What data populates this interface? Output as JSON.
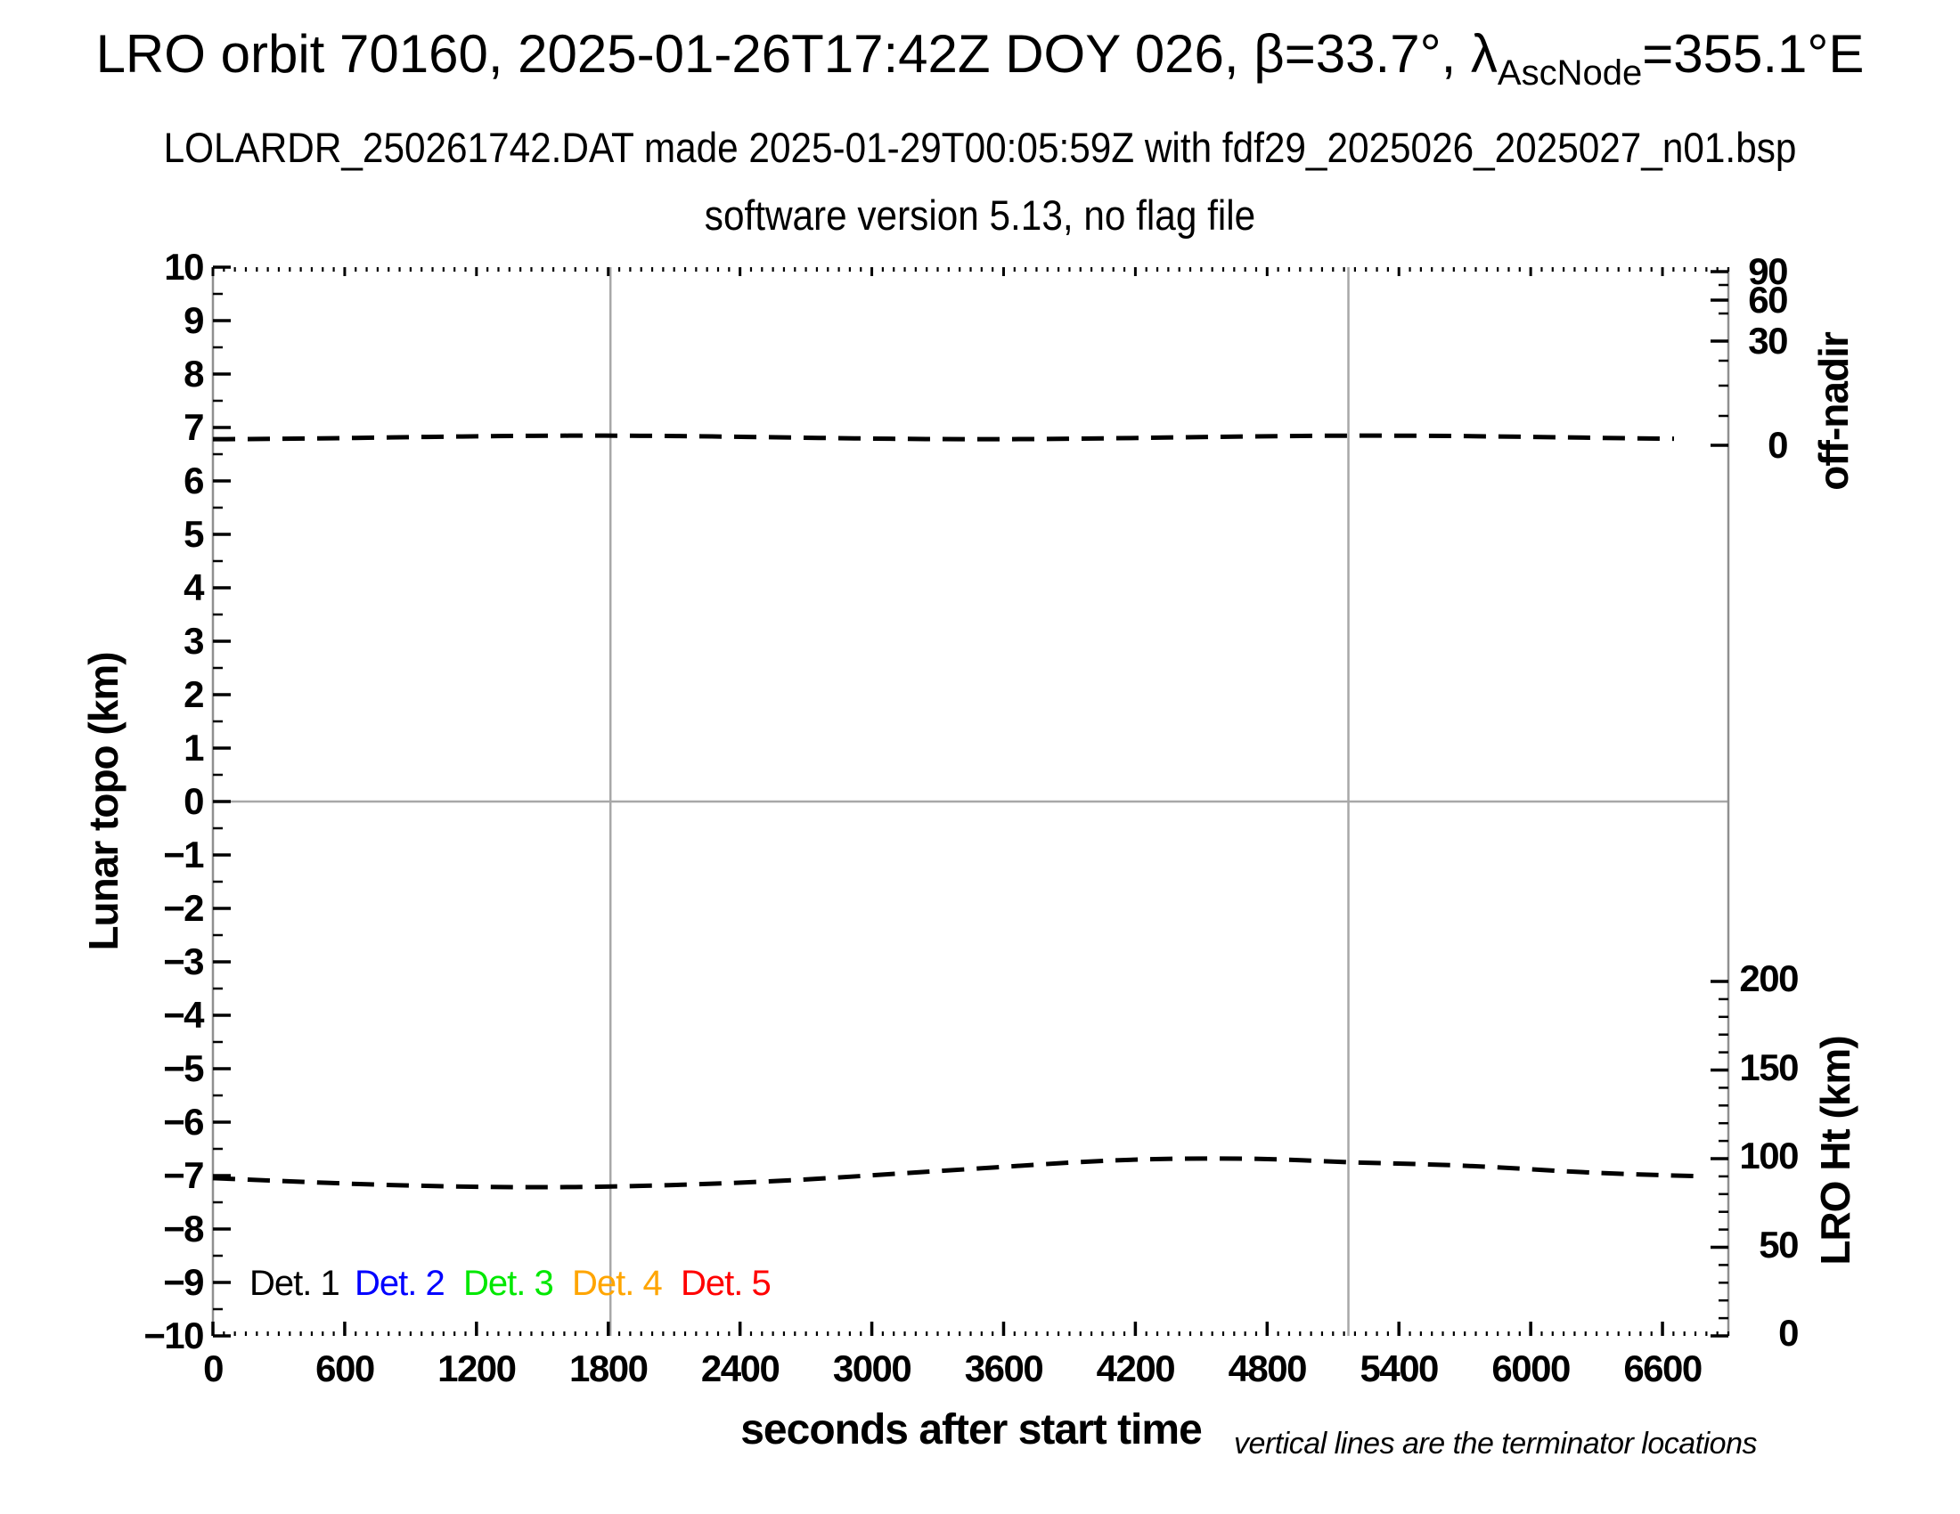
{
  "title": {
    "main": "LRO orbit 70160, 2025-01-26T17:42Z DOY 026, β=33.7°, λ",
    "subscript": "AscNode",
    "suffix": "=355.1°E"
  },
  "subtitle": "LOLARDR_250261742.DAT made 2025-01-29T00:05:59Z with fdf29_2025026_2025027_n01.bsp",
  "subtitle2": "software version 5.13, no flag file",
  "footnote": "vertical lines are the terminator locations",
  "axes": {
    "x": {
      "label": "seconds after start time",
      "tick_values": [
        0,
        600,
        1200,
        1800,
        2400,
        3000,
        3600,
        4200,
        4800,
        5400,
        6000,
        6600
      ],
      "range": [
        0,
        6900
      ],
      "minor_step": 50
    },
    "y_left": {
      "label": "Lunar topo (km)",
      "tick_values": [
        10,
        9,
        8,
        7,
        6,
        5,
        4,
        3,
        2,
        1,
        0,
        -1,
        -2,
        -3,
        -4,
        -5,
        -6,
        -7,
        -8,
        -9,
        -10
      ],
      "range": [
        -10,
        10
      ],
      "minor_step": 0.5
    },
    "y_right_off_nadir": {
      "label": "off-nadir",
      "tick_values": [
        90,
        60,
        30,
        0
      ],
      "unit": "degrees",
      "scale": "nonlinear"
    },
    "y_right_height": {
      "label": "LRO Ht (km)",
      "tick_values": [
        200,
        150,
        100,
        50,
        0
      ],
      "range": [
        0,
        200
      ],
      "minor_step": 10
    }
  },
  "legend": {
    "items": [
      {
        "label": "Det. 1",
        "color": "#000000"
      },
      {
        "label": "Det. 2",
        "color": "#0000ff"
      },
      {
        "label": "Det. 3",
        "color": "#00e800"
      },
      {
        "label": "Det. 4",
        "color": "#ffa500"
      },
      {
        "label": "Det. 5",
        "color": "#ff0000"
      }
    ]
  },
  "chart_data": {
    "type": "line",
    "title": "LRO orbit 70160, 2025-01-26T17:42Z DOY 026, β=33.7°, λAscNode=355.1°E",
    "xlabel": "seconds after start time",
    "x_range": [
      0,
      6900
    ],
    "y_left_label": "Lunar topo (km)",
    "y_left_range": [
      -10,
      10
    ],
    "grid": "single horizontal gridline at topo = 0",
    "series": [
      {
        "name": "spacecraft off-nadir angle (dashed, all detectors overplotted)",
        "axis": "off-nadir (deg, nonlinear right axis)",
        "style": "dashed black",
        "x": [
          0,
          600,
          1200,
          1800,
          2400,
          3000,
          3600,
          4200,
          4800,
          5400,
          6000,
          6780
        ],
        "y": [
          1.5,
          1.5,
          1.5,
          1.5,
          1.5,
          1.5,
          1.5,
          1.5,
          1.5,
          1.5,
          1.5,
          1.5
        ]
      },
      {
        "name": "LRO height above surface (dashed)",
        "axis": "LRO Ht (km, right axis)",
        "style": "dashed black",
        "x": [
          0,
          850,
          1650,
          2500,
          3300,
          4100,
          4700,
          5170,
          5700,
          6300,
          6790
        ],
        "y": [
          89,
          85,
          84,
          87,
          93,
          99,
          100,
          98,
          96,
          92,
          90
        ]
      }
    ],
    "annotations": {
      "terminator_lines_x_s": [
        1810,
        5170
      ],
      "zero_topo_gridline": 0
    },
    "legend_entries": [
      "Det. 1",
      "Det. 2",
      "Det. 3",
      "Det. 4",
      "Det. 5"
    ],
    "legend_position": "bottom-left inside plot, at topo = -9"
  }
}
